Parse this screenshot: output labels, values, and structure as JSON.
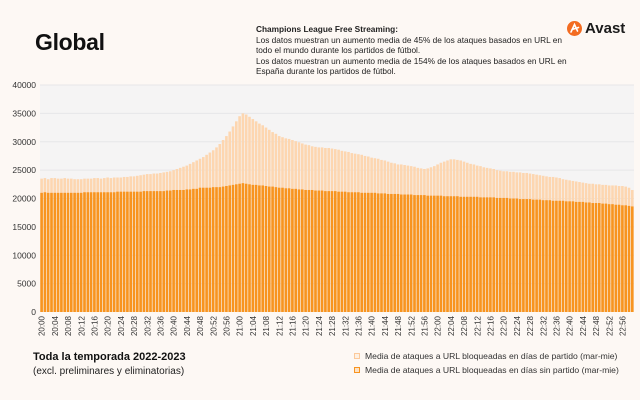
{
  "header": {
    "title": "Global",
    "note_heading": "Champions League Free Streaming:",
    "note_line1": "Los datos muestran un aumento media de 45% de los ataques basados en URL en todo el mundo durante los partidos de fútbol.",
    "note_line2": "Los datos muestran un aumento media de 154% de los ataques basados en URL en España durante los partidos de fútbol.",
    "logo_text": "Avast"
  },
  "footer": {
    "title": "Toda la temporada 2022-2023",
    "subtitle": "(excl. preliminares y eliminatorias)"
  },
  "colors": {
    "match": "#fdd6b0",
    "no_match": "#f8941f",
    "plot_bg": "#f5f4f4",
    "brand": "#f36c21"
  },
  "chart_data": {
    "type": "bar",
    "overlapping": true,
    "ylim": [
      0,
      40000
    ],
    "y_ticks": [
      "0",
      "5000",
      "10000",
      "15000",
      "20000",
      "25000",
      "30000",
      "35000",
      "40000"
    ],
    "x_range": [
      "20:00",
      "22:59"
    ],
    "x_interval": "1 min",
    "x_tick_labels": [
      "20:00",
      "20:04",
      "20:08",
      "20:12",
      "20:16",
      "20:20",
      "20:24",
      "20:28",
      "20:32",
      "20:36",
      "20:40",
      "20:44",
      "20:48",
      "20:52",
      "20:56",
      "21:00",
      "21:04",
      "21:08",
      "21:12",
      "21:16",
      "21:20",
      "21:24",
      "21:28",
      "21:32",
      "21:36",
      "21:40",
      "21:44",
      "21:48",
      "21:52",
      "21:56",
      "22:00",
      "22:04",
      "22:08",
      "22:12",
      "22:16",
      "22:20",
      "22:24",
      "22:28",
      "22:32",
      "22:36",
      "22:40",
      "22:44",
      "22:48",
      "22:52",
      "22:56"
    ],
    "grid": true,
    "legend_position": "bottom-right",
    "series": [
      {
        "name": "Media de ataques a URL bloqueadas en días de partido (mar-mie)",
        "values": [
          23500,
          23600,
          23400,
          23600,
          23600,
          23500,
          23500,
          23600,
          23500,
          23500,
          23400,
          23400,
          23400,
          23500,
          23500,
          23500,
          23600,
          23600,
          23500,
          23600,
          23700,
          23600,
          23700,
          23700,
          23700,
          23800,
          23800,
          23900,
          23900,
          24000,
          24100,
          24200,
          24300,
          24300,
          24400,
          24400,
          24500,
          24600,
          24700,
          24800,
          25000,
          25200,
          25400,
          25600,
          25800,
          26100,
          26400,
          26700,
          27000,
          27300,
          27700,
          28100,
          28500,
          29000,
          29600,
          30300,
          31000,
          31800,
          32700,
          33600,
          34500,
          35000,
          34800,
          34400,
          34000,
          33600,
          33200,
          32900,
          32500,
          32100,
          31700,
          31400,
          31000,
          30800,
          30600,
          30500,
          30300,
          30100,
          29900,
          29700,
          29500,
          29400,
          29200,
          29100,
          29000,
          29000,
          28900,
          28900,
          28800,
          28700,
          28600,
          28400,
          28300,
          28200,
          28000,
          27900,
          27800,
          27700,
          27500,
          27400,
          27200,
          27100,
          27000,
          26800,
          26700,
          26500,
          26300,
          26200,
          26000,
          26000,
          25900,
          25800,
          25700,
          25600,
          25400,
          25300,
          25200,
          25300,
          25500,
          25700,
          26000,
          26300,
          26500,
          26700,
          26900,
          26900,
          26800,
          26700,
          26500,
          26300,
          26100,
          26000,
          25800,
          25700,
          25500,
          25400,
          25300,
          25200,
          25000,
          24900,
          24800,
          24800,
          24700,
          24700,
          24600,
          24600,
          24500,
          24500,
          24400,
          24300,
          24200,
          24100,
          24000,
          23900,
          23800,
          23800,
          23700,
          23600,
          23400,
          23300,
          23200,
          23100,
          23000,
          22900,
          22800,
          22700,
          22600,
          22600,
          22500,
          22500,
          22400,
          22400,
          22300,
          22300,
          22300,
          22200,
          22200,
          22100,
          21900,
          21500
        ]
      },
      {
        "name": "Media de ataques a URL bloqueadas en días sin partido (mar-mie)",
        "values": [
          21000,
          21100,
          21000,
          21000,
          21000,
          21000,
          21000,
          21000,
          21000,
          21000,
          21000,
          21000,
          21000,
          21100,
          21100,
          21100,
          21100,
          21100,
          21100,
          21100,
          21100,
          21100,
          21100,
          21200,
          21200,
          21200,
          21200,
          21200,
          21200,
          21200,
          21200,
          21300,
          21300,
          21300,
          21300,
          21300,
          21300,
          21300,
          21400,
          21400,
          21500,
          21500,
          21500,
          21500,
          21600,
          21600,
          21700,
          21700,
          21900,
          21900,
          21900,
          21900,
          22000,
          22000,
          22000,
          22100,
          22200,
          22300,
          22400,
          22500,
          22600,
          22700,
          22600,
          22500,
          22400,
          22400,
          22300,
          22300,
          22200,
          22100,
          22100,
          22000,
          21900,
          21900,
          21800,
          21800,
          21700,
          21700,
          21600,
          21600,
          21500,
          21500,
          21500,
          21400,
          21400,
          21400,
          21300,
          21300,
          21300,
          21300,
          21200,
          21200,
          21200,
          21100,
          21100,
          21100,
          21100,
          21000,
          21000,
          21000,
          21000,
          21000,
          20900,
          20900,
          20900,
          20800,
          20800,
          20800,
          20800,
          20700,
          20700,
          20700,
          20700,
          20600,
          20600,
          20600,
          20600,
          20500,
          20500,
          20500,
          20500,
          20500,
          20400,
          20400,
          20400,
          20400,
          20400,
          20300,
          20300,
          20300,
          20300,
          20300,
          20300,
          20200,
          20200,
          20200,
          20200,
          20200,
          20100,
          20100,
          20100,
          20100,
          20000,
          20000,
          20000,
          19900,
          19900,
          19900,
          19900,
          19800,
          19800,
          19800,
          19700,
          19700,
          19700,
          19600,
          19600,
          19600,
          19600,
          19500,
          19500,
          19500,
          19400,
          19400,
          19400,
          19300,
          19300,
          19200,
          19200,
          19200,
          19100,
          19100,
          19000,
          19000,
          18900,
          18900,
          18800,
          18800,
          18700,
          18600
        ]
      }
    ]
  }
}
